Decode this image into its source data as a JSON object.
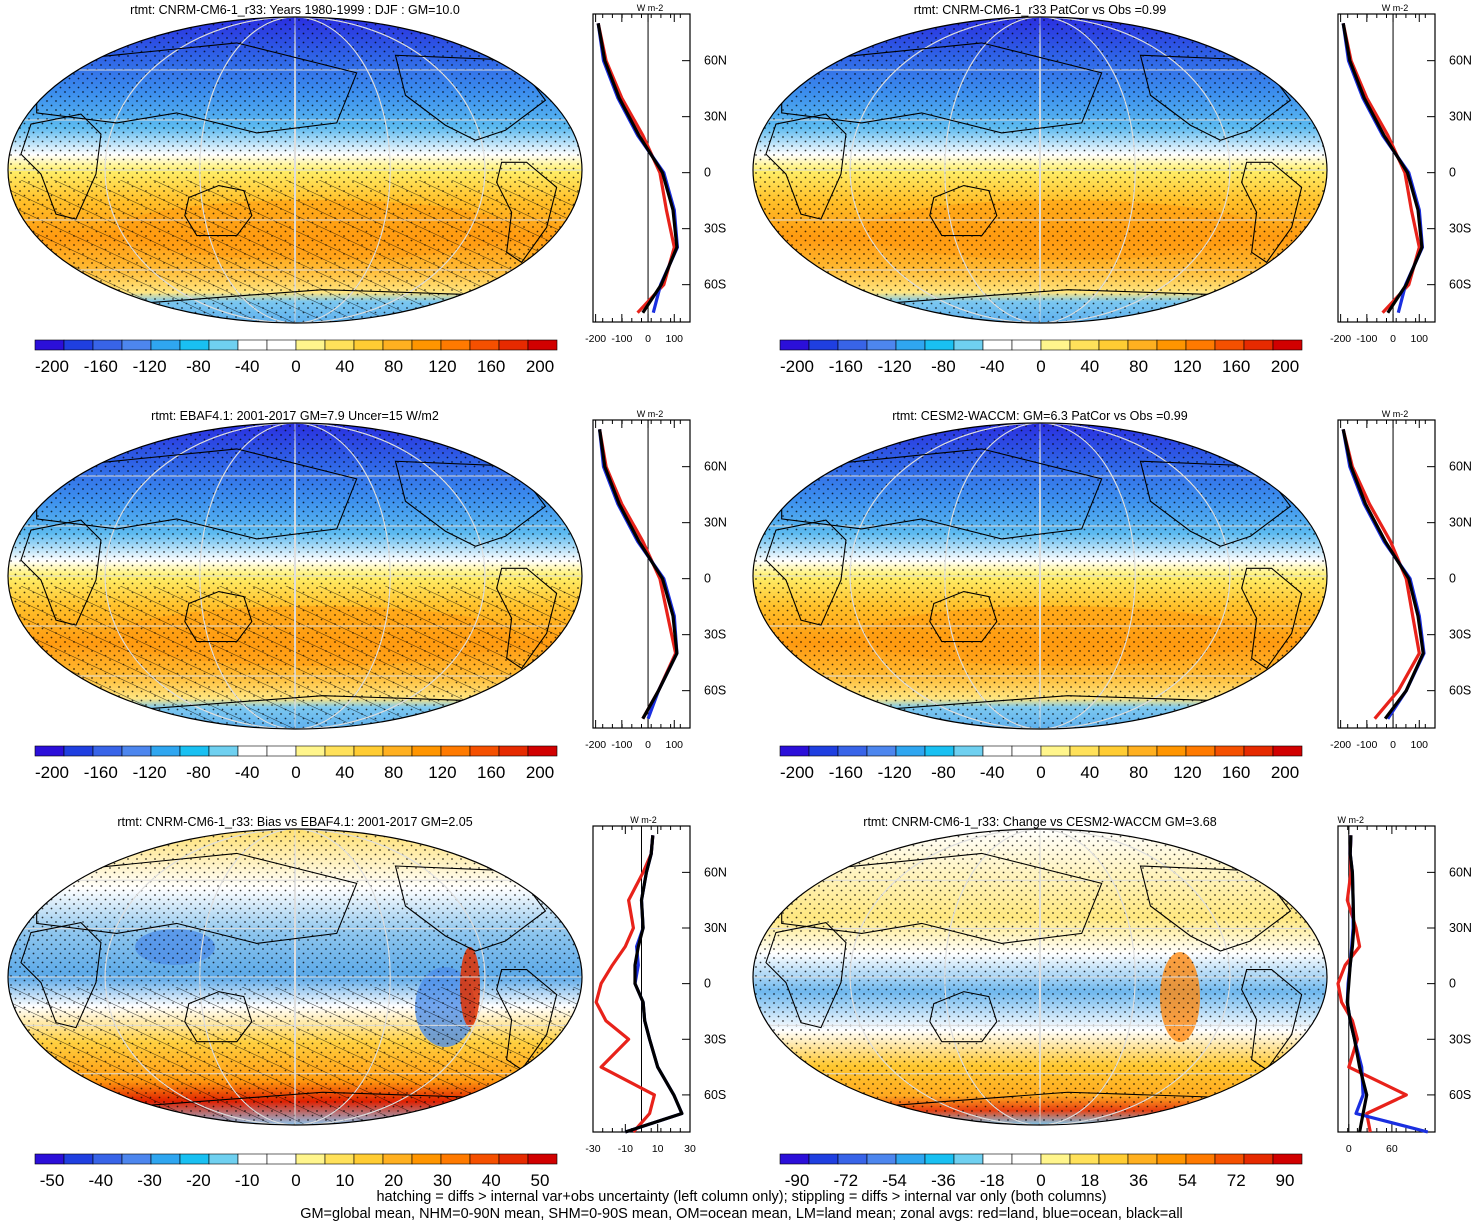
{
  "panels": [
    {
      "title": "rtmt: CNRM-CM6-1_r33: Years 1980-1999 : DJF : GM=10.0",
      "kind": "climo",
      "hatch": true,
      "colorbar_labels": [
        "-200",
        "-160",
        "-120",
        "-80",
        "-40",
        "0",
        "40",
        "80",
        "120",
        "160",
        "200"
      ],
      "profile": {
        "units": "W m-2",
        "xticks": [
          "-200",
          "-100",
          "0",
          "100"
        ],
        "xrange": [
          -210,
          160
        ]
      }
    },
    {
      "title": "rtmt: CNRM-CM6-1_r33 PatCor vs Obs =0.99",
      "kind": "climo",
      "hatch": false,
      "colorbar_labels": [
        "-200",
        "-160",
        "-120",
        "-80",
        "-40",
        "0",
        "40",
        "80",
        "120",
        "160",
        "200"
      ],
      "profile": {
        "units": "W m-2",
        "xticks": [
          "-200",
          "-100",
          "0",
          "100"
        ],
        "xrange": [
          -210,
          160
        ]
      }
    },
    {
      "title": "rtmt: EBAF4.1: 2001-2017 GM=7.9 Uncer=15 W/m2",
      "kind": "climo",
      "hatch": true,
      "colorbar_labels": [
        "-200",
        "-160",
        "-120",
        "-80",
        "-40",
        "0",
        "40",
        "80",
        "120",
        "160",
        "200"
      ],
      "profile": {
        "units": "W m-2",
        "xticks": [
          "-200",
          "-100",
          "0",
          "100"
        ],
        "xrange": [
          -210,
          160
        ]
      }
    },
    {
      "title": "rtmt: CESM2-WACCM: GM=6.3 PatCor vs Obs =0.99",
      "kind": "climo",
      "hatch": false,
      "colorbar_labels": [
        "-200",
        "-160",
        "-120",
        "-80",
        "-40",
        "0",
        "40",
        "80",
        "120",
        "160",
        "200"
      ],
      "profile": {
        "units": "W m-2",
        "xticks": [
          "-200",
          "-100",
          "0",
          "100"
        ],
        "xrange": [
          -210,
          160
        ]
      }
    },
    {
      "title": "rtmt: CNRM-CM6-1_r33: Bias vs EBAF4.1: 2001-2017 GM=2.05",
      "kind": "bias",
      "hatch": true,
      "colorbar_labels": [
        "-50",
        "-40",
        "-30",
        "-20",
        "-10",
        "0",
        "10",
        "20",
        "30",
        "40",
        "50"
      ],
      "profile": {
        "units": "W m-2",
        "xticks": [
          "-30",
          "-10",
          "10",
          "30"
        ],
        "xrange": [
          -30,
          30
        ]
      }
    },
    {
      "title": "rtmt: CNRM-CM6-1_r33: Change vs CESM2-WACCM GM=3.68",
      "kind": "change",
      "hatch": false,
      "colorbar_labels": [
        "-90",
        "-72",
        "-54",
        "-36",
        "-18",
        "0",
        "18",
        "36",
        "54",
        "72",
        "90"
      ],
      "profile": {
        "units": "W m-2",
        "xticks": [
          "0",
          "60"
        ],
        "xrange": [
          -15,
          120
        ]
      }
    }
  ],
  "lat_labels": [
    "60N",
    "30N",
    "0",
    "30S",
    "60S"
  ],
  "colors": {
    "palette": [
      "#2b0fd9",
      "#1f3fe0",
      "#3864e8",
      "#4d86ee",
      "#2fa6f0",
      "#19c0f2",
      "#6fd0f0",
      "#ffffff",
      "#ffffff",
      "#fff58c",
      "#ffe15a",
      "#ffcc33",
      "#ffb020",
      "#ff9500",
      "#ff7a00",
      "#f55000",
      "#e62a00",
      "#d10000"
    ],
    "land": "#e8221a",
    "ocean": "#1a2fe0",
    "all": "#000000"
  },
  "chart_data": [
    {
      "type": "heatmap",
      "name": "CNRM-CM6-1_r33 rtmt DJF 1980-1999 map",
      "zonal_profile": {
        "lat": [
          80,
          60,
          40,
          20,
          0,
          -20,
          -40,
          -60,
          -75
        ],
        "all": [
          -190,
          -165,
          -110,
          -35,
          55,
          95,
          110,
          50,
          -20
        ],
        "land": [
          -190,
          -160,
          -100,
          -20,
          45,
          70,
          100,
          60,
          -40
        ],
        "ocean": [
          -190,
          -170,
          -115,
          -40,
          60,
          100,
          112,
          48,
          20
        ]
      }
    },
    {
      "type": "heatmap",
      "name": "CNRM-CM6-1_r33 vs Obs map",
      "zonal_profile": {
        "lat": [
          80,
          60,
          40,
          20,
          0,
          -20,
          -40,
          -60,
          -75
        ],
        "all": [
          -190,
          -165,
          -110,
          -35,
          55,
          95,
          110,
          50,
          -20
        ],
        "land": [
          -190,
          -160,
          -100,
          -20,
          45,
          70,
          100,
          60,
          -40
        ],
        "ocean": [
          -190,
          -170,
          -115,
          -40,
          60,
          100,
          112,
          48,
          20
        ]
      }
    },
    {
      "type": "heatmap",
      "name": "EBAF4.1 2001-2017 map",
      "zonal_profile": {
        "lat": [
          80,
          60,
          40,
          20,
          0,
          -20,
          -40,
          -60,
          -75
        ],
        "all": [
          -185,
          -165,
          -110,
          -35,
          55,
          95,
          110,
          40,
          -20
        ],
        "land": [
          -185,
          -160,
          -100,
          -20,
          45,
          75,
          105,
          40,
          -20
        ],
        "ocean": [
          -185,
          -170,
          -115,
          -40,
          60,
          100,
          110,
          40,
          0
        ]
      }
    },
    {
      "type": "heatmap",
      "name": "CESM2-WACCM map",
      "zonal_profile": {
        "lat": [
          80,
          60,
          40,
          20,
          0,
          -20,
          -40,
          -60,
          -75
        ],
        "all": [
          -190,
          -160,
          -105,
          -30,
          60,
          95,
          115,
          50,
          -30
        ],
        "land": [
          -190,
          -155,
          -90,
          -10,
          50,
          75,
          100,
          20,
          -70
        ],
        "ocean": [
          -190,
          -165,
          -110,
          -35,
          65,
          100,
          118,
          50,
          -20
        ]
      }
    },
    {
      "type": "heatmap",
      "name": "Bias vs EBAF4.1 map",
      "zonal_profile": {
        "lat": [
          80,
          70,
          60,
          45,
          30,
          20,
          10,
          0,
          -10,
          -20,
          -30,
          -45,
          -60,
          -70,
          -80
        ],
        "all": [
          7,
          6,
          3,
          0,
          1,
          -2,
          -4,
          -4,
          1,
          2,
          5,
          10,
          20,
          25,
          -10
        ],
        "land": [
          7,
          6,
          1,
          -8,
          -5,
          -10,
          -18,
          -25,
          -28,
          -22,
          -8,
          -25,
          8,
          5,
          -5
        ],
        "ocean": [
          7,
          6,
          3,
          0,
          1,
          -3,
          -2,
          -4,
          1,
          2,
          5,
          10,
          20,
          25,
          -10
        ]
      }
    },
    {
      "type": "heatmap",
      "name": "Change vs CESM2-WACCM map",
      "zonal_profile": {
        "lat": [
          80,
          70,
          60,
          45,
          30,
          20,
          10,
          0,
          -10,
          -20,
          -30,
          -45,
          -60,
          -70,
          -80
        ],
        "all": [
          3,
          2,
          5,
          6,
          7,
          5,
          2,
          0,
          -2,
          2,
          8,
          15,
          25,
          20,
          15
        ],
        "land": [
          3,
          2,
          3,
          -2,
          10,
          15,
          -5,
          -15,
          -10,
          5,
          12,
          0,
          80,
          25,
          30
        ],
        "ocean": [
          3,
          2,
          5,
          6,
          6,
          4,
          2,
          -1,
          -2,
          2,
          8,
          18,
          20,
          10,
          110
        ]
      }
    }
  ],
  "footer": {
    "line1": "hatching = diffs > internal var+obs uncertainty (left column only); stippling = diffs > internal var only (both columns)",
    "line2": "GM=global mean, NHM=0-90N mean, SHM=0-90S mean, OM=ocean mean, LM=land mean; zonal avgs: red=land, blue=ocean, black=all"
  }
}
